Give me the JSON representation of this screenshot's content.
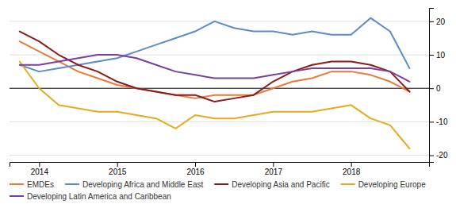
{
  "chart_data": {
    "type": "line",
    "x": [
      2013.75,
      2014.0,
      2014.25,
      2014.5,
      2014.75,
      2015.0,
      2015.25,
      2015.5,
      2015.75,
      2016.0,
      2016.25,
      2016.5,
      2016.75,
      2017.0,
      2017.25,
      2017.5,
      2017.75,
      2018.0,
      2018.25,
      2018.5,
      2018.75
    ],
    "series": [
      {
        "name": "EMDEs",
        "color": "#e8793a",
        "values": [
          14,
          11,
          8,
          5,
          3,
          1,
          0,
          -1,
          -2,
          -3,
          -2,
          -2,
          -2,
          0,
          2,
          3,
          5,
          5,
          4,
          2,
          -1
        ]
      },
      {
        "name": "Developing Africa and Middle East",
        "color": "#5b8cc8",
        "values": [
          7,
          5,
          6,
          7,
          8,
          9,
          11,
          13,
          15,
          17,
          20,
          18,
          17,
          17,
          16,
          17,
          16,
          16,
          21,
          17,
          6
        ]
      },
      {
        "name": "Developing Asia and Pacific",
        "color": "#8b1a1a",
        "values": [
          17,
          14,
          10,
          7,
          5,
          2,
          0,
          -1,
          -2,
          -2,
          -4,
          -3,
          -2,
          2,
          5,
          7,
          8,
          8,
          7,
          5,
          -1
        ]
      },
      {
        "name": "Developing Europe",
        "color": "#e8a820",
        "values": [
          8,
          0,
          -5,
          -6,
          -7,
          -7,
          -8,
          -9,
          -12,
          -8,
          -9,
          -9,
          -8,
          -7,
          -7,
          -7,
          -6,
          -5,
          -9,
          -11,
          -18
        ]
      },
      {
        "name": "Developing Latin America and Caribbean",
        "color": "#7b3fa0",
        "values": [
          7,
          7,
          8,
          9,
          10,
          10,
          9,
          7,
          5,
          4,
          3,
          3,
          3,
          4,
          5,
          6,
          6,
          6,
          6,
          5,
          2
        ]
      }
    ],
    "xlim": [
      2013.62,
      2019.0
    ],
    "xticks": [
      2014,
      2015,
      2016,
      2017,
      2018
    ],
    "ylim": [
      -22,
      24
    ],
    "yticks": [
      -20,
      -10,
      0,
      10,
      20
    ],
    "grid": true,
    "legend": "bottom"
  }
}
